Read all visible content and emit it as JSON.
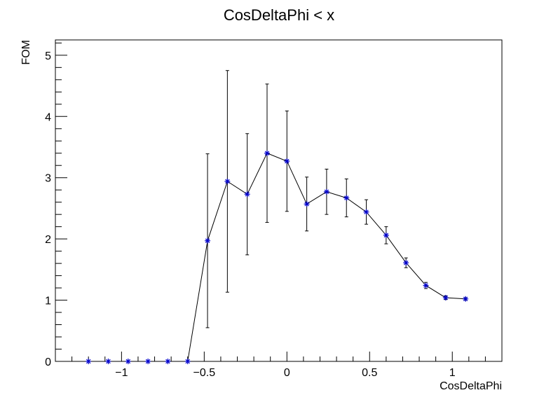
{
  "chart_data": {
    "type": "scatter",
    "title": "CosDeltaPhi < x",
    "xlabel": "CosDeltaPhi",
    "ylabel": "FOM",
    "xlim": [
      -1.4,
      1.3
    ],
    "ylim": [
      0,
      5.25
    ],
    "x_ticks": [
      -1,
      -0.5,
      0,
      0.5,
      1
    ],
    "x_tick_labels": [
      "−1",
      "−0.5",
      "0",
      "0.5",
      "1"
    ],
    "y_ticks": [
      0,
      1,
      2,
      3,
      4,
      5
    ],
    "y_tick_labels": [
      "0",
      "1",
      "2",
      "3",
      "4",
      "5"
    ],
    "grid": false,
    "marker_color": "#0000cc",
    "line_color": "#000000",
    "points": [
      {
        "x": -1.2,
        "y": 0.0,
        "err": 0
      },
      {
        "x": -1.08,
        "y": 0.0,
        "err": 0
      },
      {
        "x": -0.96,
        "y": 0.0,
        "err": 0
      },
      {
        "x": -0.84,
        "y": 0.0,
        "err": 0
      },
      {
        "x": -0.72,
        "y": 0.0,
        "err": 0
      },
      {
        "x": -0.6,
        "y": 0.0,
        "err": 0
      },
      {
        "x": -0.48,
        "y": 1.97,
        "err": 1.42
      },
      {
        "x": -0.36,
        "y": 2.94,
        "err": 1.81
      },
      {
        "x": -0.24,
        "y": 2.73,
        "err": 0.99
      },
      {
        "x": -0.12,
        "y": 3.4,
        "err": 1.13
      },
      {
        "x": 0.0,
        "y": 3.27,
        "err": 0.82
      },
      {
        "x": 0.12,
        "y": 2.57,
        "err": 0.44
      },
      {
        "x": 0.24,
        "y": 2.77,
        "err": 0.37
      },
      {
        "x": 0.36,
        "y": 2.67,
        "err": 0.31
      },
      {
        "x": 0.48,
        "y": 2.44,
        "err": 0.2
      },
      {
        "x": 0.6,
        "y": 2.06,
        "err": 0.14
      },
      {
        "x": 0.72,
        "y": 1.61,
        "err": 0.08
      },
      {
        "x": 0.84,
        "y": 1.24,
        "err": 0.05
      },
      {
        "x": 0.96,
        "y": 1.04,
        "err": 0.03
      },
      {
        "x": 1.08,
        "y": 1.02,
        "err": 0.02
      }
    ]
  }
}
